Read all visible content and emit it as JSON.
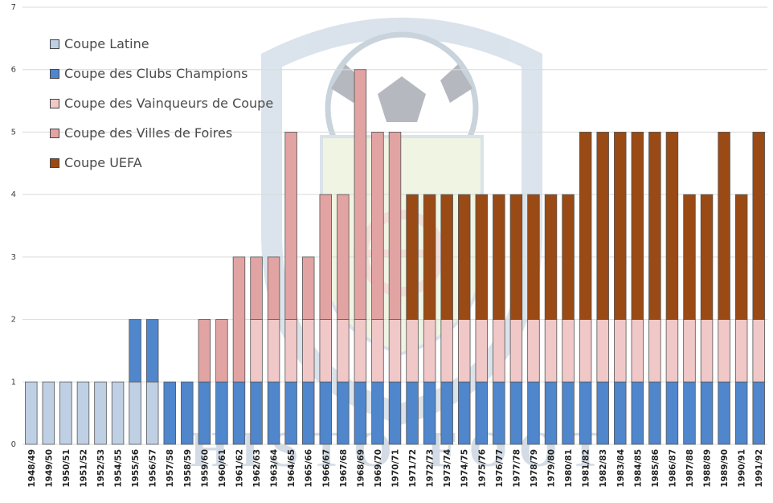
{
  "chart_data": {
    "type": "bar",
    "stacked": true,
    "categories": [
      "1948/49",
      "1949/50",
      "1950/51",
      "1951/52",
      "1952/53",
      "1954/55",
      "1955/56",
      "1956/57",
      "1957/58",
      "1958/59",
      "1959/60",
      "1960/61",
      "1961/62",
      "1962/63",
      "1963/64",
      "1964/65",
      "1965/66",
      "1966/67",
      "1967/68",
      "1968/69",
      "1969/70",
      "1970/71",
      "1971/72",
      "1972/73",
      "1973/74",
      "1974/75",
      "1975/76",
      "1976/77",
      "1977/78",
      "1978/79",
      "1979/80",
      "1980/81",
      "1981/82",
      "1982/83",
      "1983/84",
      "1984/85",
      "1985/86",
      "1986/87",
      "1987/88",
      "1988/89",
      "1989/90",
      "1990/91",
      "1991/92"
    ],
    "series": [
      {
        "name": "Coupe Latine",
        "color": "#bfd0e4",
        "values": [
          1,
          1,
          1,
          1,
          1,
          1,
          1,
          1,
          0,
          0,
          0,
          0,
          0,
          0,
          0,
          0,
          0,
          0,
          0,
          0,
          0,
          0,
          0,
          0,
          0,
          0,
          0,
          0,
          0,
          0,
          0,
          0,
          0,
          0,
          0,
          0,
          0,
          0,
          0,
          0,
          0,
          0,
          0
        ]
      },
      {
        "name": "Coupe des Clubs Champions",
        "color": "#4f86cc",
        "values": [
          0,
          0,
          0,
          0,
          0,
          0,
          1,
          1,
          1,
          1,
          1,
          1,
          1,
          1,
          1,
          1,
          1,
          1,
          1,
          1,
          1,
          1,
          1,
          1,
          1,
          1,
          1,
          1,
          1,
          1,
          1,
          1,
          1,
          1,
          1,
          1,
          1,
          1,
          1,
          1,
          1,
          1,
          1
        ]
      },
      {
        "name": "Coupe des Vainqueurs de Coupe",
        "color": "#f0c8c8",
        "values": [
          0,
          0,
          0,
          0,
          0,
          0,
          0,
          0,
          0,
          0,
          0,
          0,
          0,
          1,
          1,
          1,
          1,
          1,
          1,
          1,
          1,
          1,
          1,
          1,
          1,
          1,
          1,
          1,
          1,
          1,
          1,
          1,
          1,
          1,
          1,
          1,
          1,
          1,
          1,
          1,
          1,
          1,
          1
        ]
      },
      {
        "name": "Coupe des Villes de Foires",
        "color": "#e2a3a3",
        "values": [
          0,
          0,
          0,
          0,
          0,
          0,
          0,
          0,
          0,
          0,
          1,
          1,
          2,
          1,
          1,
          3,
          1,
          2,
          2,
          4,
          3,
          3,
          0,
          0,
          0,
          0,
          0,
          0,
          0,
          0,
          0,
          0,
          0,
          0,
          0,
          0,
          0,
          0,
          0,
          0,
          0,
          0,
          0
        ]
      },
      {
        "name": "Coupe UEFA",
        "color": "#9a4a14",
        "values": [
          0,
          0,
          0,
          0,
          0,
          0,
          0,
          0,
          0,
          0,
          0,
          0,
          0,
          0,
          0,
          0,
          0,
          0,
          0,
          0,
          0,
          0,
          2,
          2,
          2,
          2,
          2,
          2,
          2,
          2,
          2,
          2,
          3,
          3,
          3,
          3,
          3,
          3,
          2,
          2,
          3,
          2,
          3
        ]
      }
    ],
    "ylim": [
      0,
      7
    ],
    "yticks": [
      0,
      1,
      2,
      3,
      4,
      5,
      6,
      7
    ],
    "grid": true,
    "legend_position": "top-left",
    "watermark_text": "HISTO FOOT"
  }
}
